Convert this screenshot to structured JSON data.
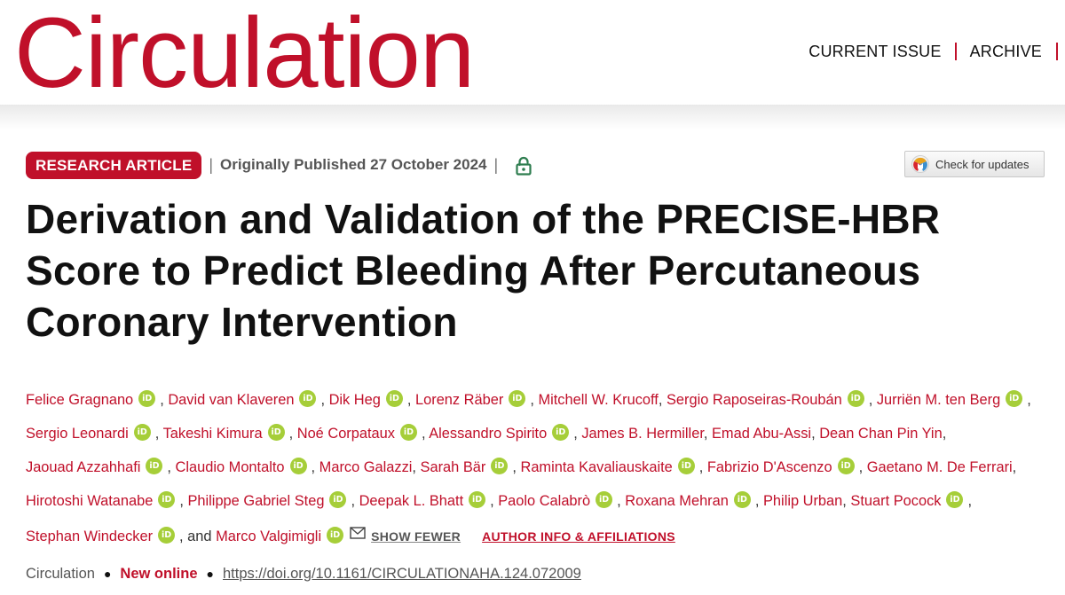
{
  "header": {
    "logo": "Circulation",
    "nav": [
      "CURRENT ISSUE",
      "ARCHIVE"
    ]
  },
  "meta": {
    "badge": "RESEARCH ARTICLE",
    "published": "Originally Published 27 October 2024",
    "check_updates": "Check for updates"
  },
  "article": {
    "title": "Derivation and Validation of the PRECISE-HBR Score to Predict Bleeding After Percutaneous Coronary Intervention"
  },
  "authors": {
    "list": [
      {
        "name": "Felice Gragnano",
        "orcid": true
      },
      {
        "name": "David van Klaveren",
        "orcid": true
      },
      {
        "name": "Dik Heg",
        "orcid": true
      },
      {
        "name": "Lorenz Räber",
        "orcid": true
      },
      {
        "name": "Mitchell W. Krucoff",
        "orcid": false
      },
      {
        "name": "Sergio Raposeiras-Roubán",
        "orcid": true
      },
      {
        "name": "Jurriën M. ten Berg",
        "orcid": true
      },
      {
        "name": "Sergio Leonardi",
        "orcid": true
      },
      {
        "name": "Takeshi Kimura",
        "orcid": true
      },
      {
        "name": "Noé Corpataux",
        "orcid": true
      },
      {
        "name": "Alessandro Spirito",
        "orcid": true
      },
      {
        "name": "James B. Hermiller",
        "orcid": false
      },
      {
        "name": "Emad Abu-Assi",
        "orcid": false
      },
      {
        "name": "Dean Chan Pin Yin",
        "orcid": false
      },
      {
        "name": "Jaouad Azzahhafi",
        "orcid": true
      },
      {
        "name": "Claudio Montalto",
        "orcid": true
      },
      {
        "name": "Marco Galazzi",
        "orcid": false
      },
      {
        "name": "Sarah Bär",
        "orcid": true
      },
      {
        "name": "Raminta Kavaliauskaite",
        "orcid": true
      },
      {
        "name": "Fabrizio D'Ascenzo",
        "orcid": true
      },
      {
        "name": "Gaetano M. De Ferrari",
        "orcid": false
      },
      {
        "name": "Hirotoshi Watanabe",
        "orcid": true
      },
      {
        "name": "Philippe Gabriel Steg",
        "orcid": true
      },
      {
        "name": "Deepak L. Bhatt",
        "orcid": true
      },
      {
        "name": "Paolo Calabrò",
        "orcid": true
      },
      {
        "name": "Roxana Mehran",
        "orcid": true
      },
      {
        "name": "Philip Urban",
        "orcid": false
      },
      {
        "name": "Stuart Pocock",
        "orcid": true
      },
      {
        "name": "Stephan Windecker",
        "orcid": true
      },
      {
        "name": "Marco Valgimigli",
        "orcid": true
      }
    ],
    "separator": ",",
    "and_text": ", and",
    "orcid_label": "iD",
    "show_fewer": "SHOW FEWER",
    "author_info": "AUTHOR INFO & AFFILIATIONS"
  },
  "footer": {
    "journal": "Circulation",
    "status": "New online",
    "doi": "https://doi.org/10.1161/CIRCULATIONAHA.124.072009"
  },
  "colors": {
    "brand": "#c0102a",
    "orcid": "#a6ce39",
    "lock": "#2e7d4f"
  }
}
